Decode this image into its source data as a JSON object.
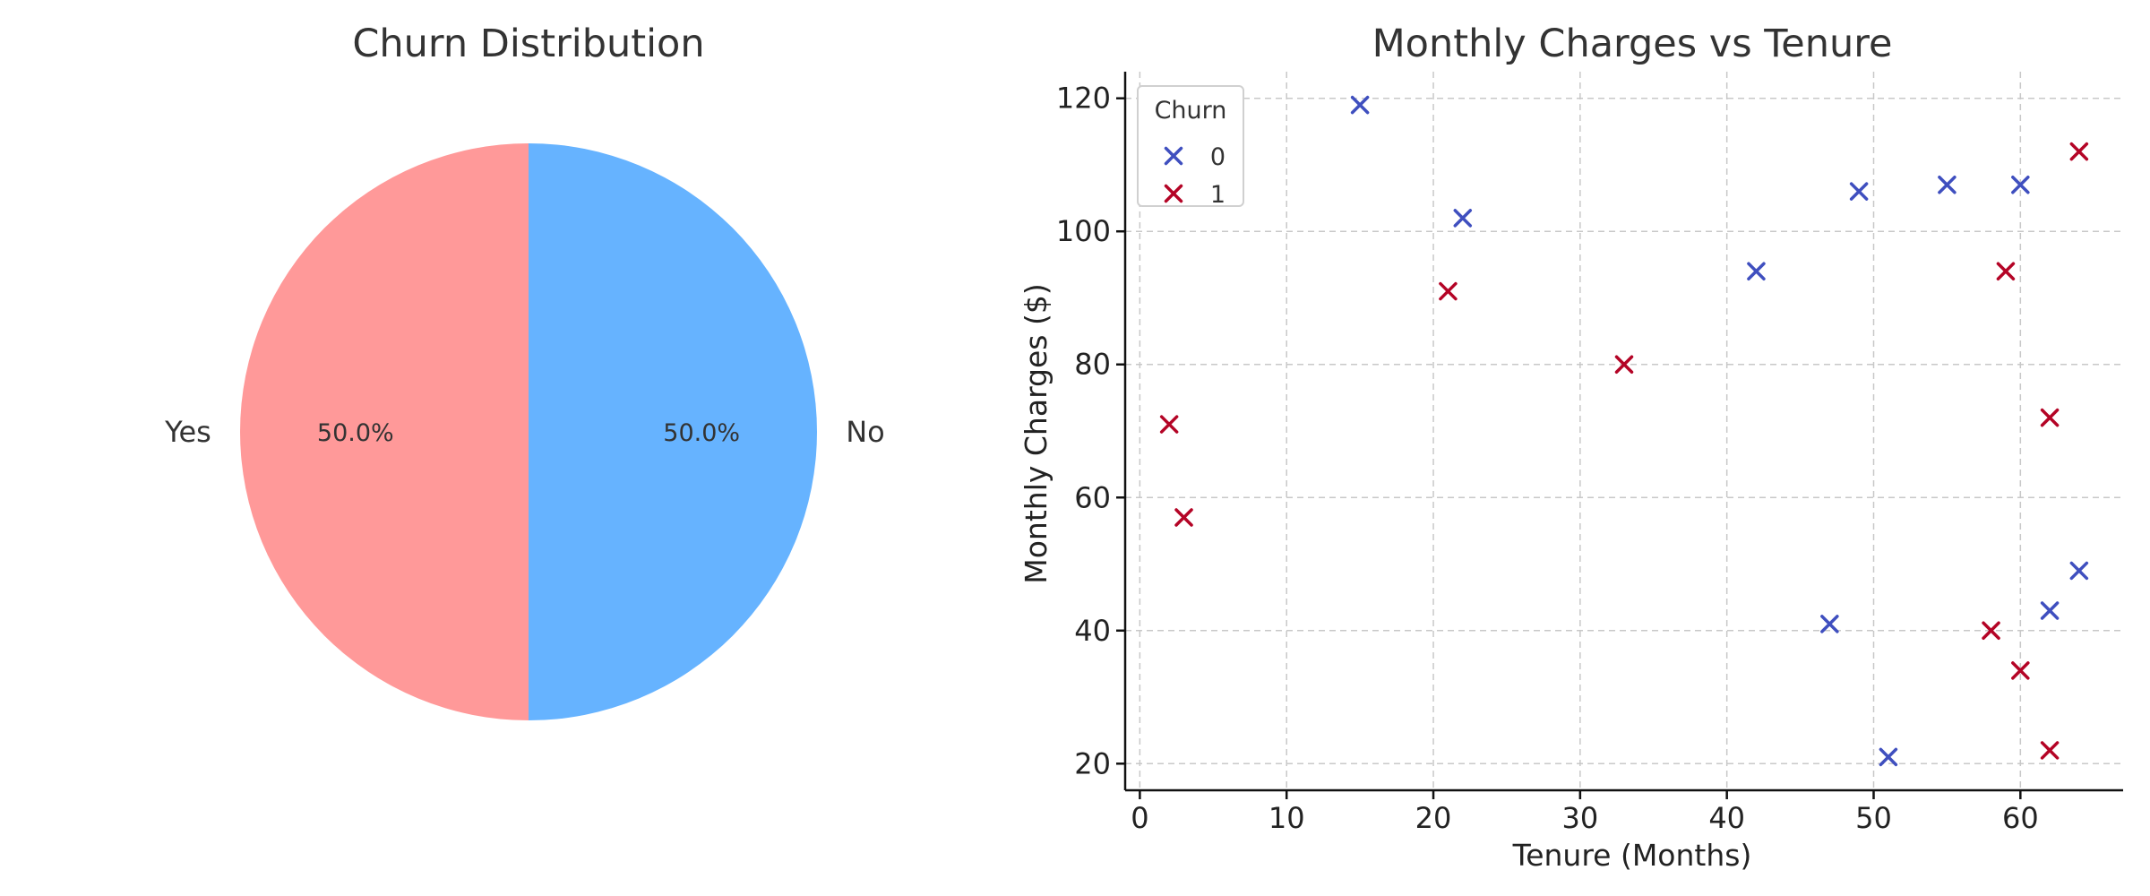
{
  "chart_data": [
    {
      "type": "pie",
      "title": "Churn Distribution",
      "slices": [
        {
          "label": "No",
          "value": 50.0,
          "pct_label": "50.0%",
          "color": "#66b3ff"
        },
        {
          "label": "Yes",
          "value": 50.0,
          "pct_label": "50.0%",
          "color": "#ff9999"
        }
      ]
    },
    {
      "type": "scatter",
      "title": "Monthly Charges vs Tenure",
      "xlabel": "Tenure (Months)",
      "ylabel": "Monthly Charges ($)",
      "xlim": [
        -1,
        67
      ],
      "ylim": [
        16,
        124
      ],
      "xticks": [
        0,
        10,
        20,
        30,
        40,
        50,
        60
      ],
      "yticks": [
        20,
        40,
        60,
        80,
        100,
        120
      ],
      "grid": true,
      "legend": {
        "title": "Churn",
        "placement": "top-left"
      },
      "series": [
        {
          "name": "0",
          "color": "#3f4fbf",
          "marker": "x",
          "points": [
            {
              "x": 15,
              "y": 119
            },
            {
              "x": 22,
              "y": 102
            },
            {
              "x": 42,
              "y": 94
            },
            {
              "x": 49,
              "y": 106
            },
            {
              "x": 55,
              "y": 107
            },
            {
              "x": 60,
              "y": 107
            },
            {
              "x": 47,
              "y": 41
            },
            {
              "x": 51,
              "y": 21
            },
            {
              "x": 62,
              "y": 43
            },
            {
              "x": 64,
              "y": 49
            }
          ]
        },
        {
          "name": "1",
          "color": "#b40426",
          "marker": "x",
          "points": [
            {
              "x": 2,
              "y": 71
            },
            {
              "x": 3,
              "y": 57
            },
            {
              "x": 21,
              "y": 91
            },
            {
              "x": 33,
              "y": 80
            },
            {
              "x": 59,
              "y": 94
            },
            {
              "x": 64,
              "y": 112
            },
            {
              "x": 62,
              "y": 72
            },
            {
              "x": 58,
              "y": 40
            },
            {
              "x": 60,
              "y": 34
            },
            {
              "x": 62,
              "y": 22
            }
          ]
        }
      ]
    }
  ]
}
